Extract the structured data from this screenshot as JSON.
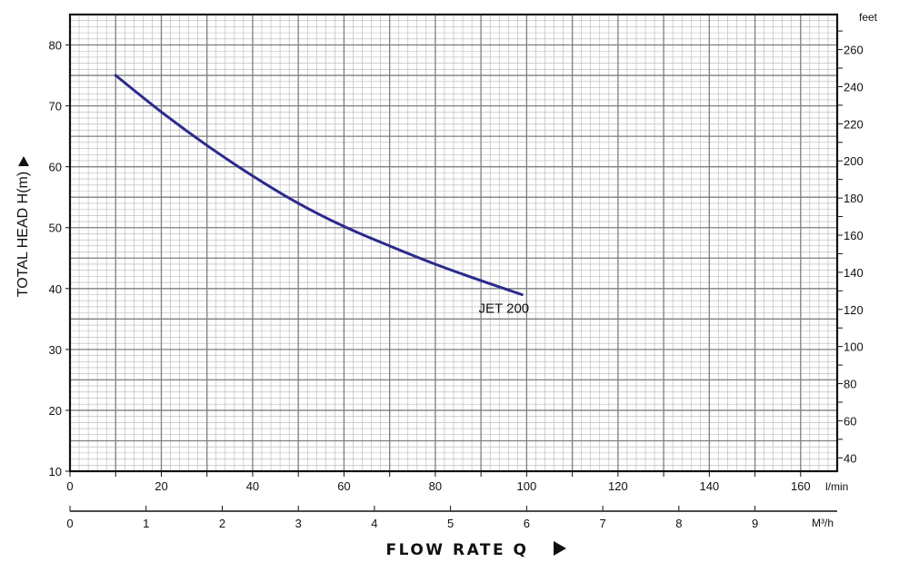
{
  "chart_data": {
    "type": "line",
    "ylabel": "TOTAL HEAD H(m)",
    "xlabel": "FLOW RATE Q",
    "x_axis": {
      "unit": "l/min",
      "range": [
        0,
        168
      ],
      "ticks": [
        0,
        20,
        40,
        60,
        80,
        100,
        120,
        140,
        160
      ]
    },
    "x_axis_secondary": {
      "unit": "M³/h",
      "range": [
        0,
        10.08
      ],
      "ticks": [
        0,
        1,
        2,
        3,
        4,
        5,
        6,
        7,
        8,
        9
      ]
    },
    "y_axis": {
      "unit": "m",
      "range": [
        10,
        85
      ],
      "ticks": [
        10,
        20,
        30,
        40,
        50,
        60,
        70,
        80
      ]
    },
    "y_axis_secondary": {
      "unit": "feet",
      "ticks": [
        40,
        60,
        80,
        100,
        120,
        140,
        160,
        180,
        200,
        220,
        240,
        260
      ]
    },
    "grid": true,
    "series": [
      {
        "name": "JET 200",
        "color": "#2b2a8c",
        "x": [
          10,
          20,
          30,
          40,
          50,
          60,
          70,
          80,
          90,
          99
        ],
        "y": [
          75,
          69,
          63.5,
          58.5,
          54,
          50.2,
          47,
          44,
          41.3,
          39
        ]
      }
    ]
  }
}
